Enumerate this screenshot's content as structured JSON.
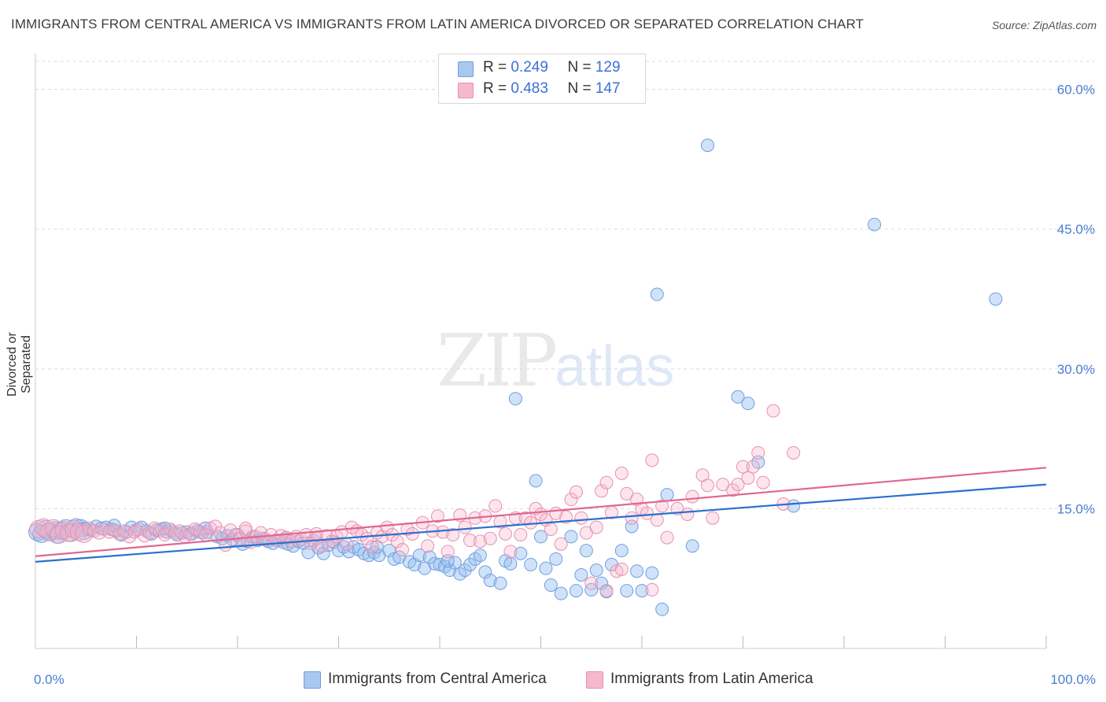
{
  "header": {
    "title": "IMMIGRANTS FROM CENTRAL AMERICA VS IMMIGRANTS FROM LATIN AMERICA DIVORCED OR SEPARATED CORRELATION CHART",
    "source": "Source: ZipAtlas.com"
  },
  "watermark": {
    "zip": "ZIP",
    "atlas": "atlas"
  },
  "legend": {
    "rows": [
      {
        "r_label": "R = ",
        "r_value": "0.249",
        "n_label": "N = ",
        "n_value": "129"
      },
      {
        "r_label": "R = ",
        "r_value": "0.483",
        "n_label": "N = ",
        "n_value": "147"
      }
    ]
  },
  "colors": {
    "blue_fill": "#a8c8f0",
    "blue_stroke": "#6f9fe0",
    "blue_line": "#2d6fd0",
    "pink_fill": "#f6b8cc",
    "pink_stroke": "#e890b0",
    "pink_line": "#e06890",
    "grid": "#dddddd",
    "tick_text": "#4a7fd0"
  },
  "chart_data": {
    "type": "scatter",
    "title": "IMMIGRANTS FROM CENTRAL AMERICA VS IMMIGRANTS FROM LATIN AMERICA DIVORCED OR SEPARATED CORRELATION CHART",
    "xlabel": "",
    "ylabel": "Divorced or Separated",
    "xlim": [
      0,
      100
    ],
    "ylim": [
      0,
      63
    ],
    "x_tick_labels": [
      "0.0%",
      "100.0%"
    ],
    "y_ticks": [
      15,
      30,
      45,
      60
    ],
    "y_tick_labels": [
      "15.0%",
      "30.0%",
      "45.0%",
      "60.0%"
    ],
    "grid": true,
    "legend_position": "top-center",
    "series": [
      {
        "name": "Immigrants from Central America",
        "color": "#a8c8f0",
        "trend": {
          "x": [
            0,
            100
          ],
          "y": [
            9.3,
            17.6
          ]
        },
        "points": [
          [
            0.2,
            12.5
          ],
          [
            0.6,
            12.3
          ],
          [
            1.0,
            12.8
          ],
          [
            1.5,
            12.5
          ],
          [
            2.0,
            12.7
          ],
          [
            2.5,
            12.6
          ],
          [
            3.0,
            12.9
          ],
          [
            3.5,
            12.4
          ],
          [
            4.0,
            13.0
          ],
          [
            4.5,
            12.9
          ],
          [
            5.0,
            12.8
          ],
          [
            5.5,
            12.7
          ],
          [
            6.0,
            13.1
          ],
          [
            6.5,
            12.9
          ],
          [
            7.0,
            13.0
          ],
          [
            7.5,
            12.8
          ],
          [
            8.0,
            12.6
          ],
          [
            8.5,
            12.2
          ],
          [
            9.0,
            12.5
          ],
          [
            9.5,
            13.0
          ],
          [
            10.0,
            12.7
          ],
          [
            10.5,
            13.0
          ],
          [
            11.0,
            12.6
          ],
          [
            11.5,
            12.3
          ],
          [
            12.0,
            12.7
          ],
          [
            12.5,
            12.8
          ],
          [
            13.0,
            12.5
          ],
          [
            13.5,
            12.6
          ],
          [
            14.0,
            12.2
          ],
          [
            14.5,
            12.4
          ],
          [
            15.0,
            12.5
          ],
          [
            15.5,
            12.3
          ],
          [
            16.0,
            12.6
          ],
          [
            16.5,
            12.4
          ],
          [
            17.0,
            12.5
          ],
          [
            18.0,
            12.0
          ],
          [
            18.5,
            11.8
          ],
          [
            19.0,
            12.1
          ],
          [
            19.5,
            11.7
          ],
          [
            20.0,
            12.2
          ],
          [
            20.5,
            11.2
          ],
          [
            21.0,
            11.5
          ],
          [
            21.5,
            12.0
          ],
          [
            22.0,
            11.6
          ],
          [
            22.5,
            11.8
          ],
          [
            23.0,
            11.5
          ],
          [
            23.5,
            11.3
          ],
          [
            24.0,
            11.6
          ],
          [
            24.5,
            11.4
          ],
          [
            25.0,
            11.2
          ],
          [
            25.5,
            11.0
          ],
          [
            26.0,
            11.5
          ],
          [
            26.5,
            11.3
          ],
          [
            27.0,
            10.3
          ],
          [
            27.5,
            11.6
          ],
          [
            28.0,
            10.8
          ],
          [
            28.5,
            10.2
          ],
          [
            29.0,
            11.1
          ],
          [
            29.5,
            11.4
          ],
          [
            30.0,
            10.5
          ],
          [
            30.5,
            10.9
          ],
          [
            31.0,
            10.4
          ],
          [
            31.5,
            10.9
          ],
          [
            32.0,
            10.6
          ],
          [
            32.5,
            10.2
          ],
          [
            33.0,
            10.0
          ],
          [
            33.5,
            10.3
          ],
          [
            34.0,
            10.0
          ],
          [
            35.0,
            10.5
          ],
          [
            35.5,
            9.6
          ],
          [
            36.0,
            9.8
          ],
          [
            37.0,
            9.3
          ],
          [
            37.5,
            9.0
          ],
          [
            38.0,
            10.0
          ],
          [
            38.5,
            8.6
          ],
          [
            39.0,
            9.8
          ],
          [
            39.5,
            9.1
          ],
          [
            40.0,
            9.0
          ],
          [
            40.5,
            8.8
          ],
          [
            41.0,
            8.4
          ],
          [
            41.5,
            9.2
          ],
          [
            42.0,
            8.0
          ],
          [
            42.5,
            8.4
          ],
          [
            43.0,
            9.0
          ],
          [
            43.5,
            9.6
          ],
          [
            44.0,
            10.0
          ],
          [
            44.5,
            8.2
          ],
          [
            45.0,
            7.3
          ],
          [
            46.0,
            7.0
          ],
          [
            46.5,
            9.4
          ],
          [
            47.0,
            9.1
          ],
          [
            47.5,
            26.8
          ],
          [
            48.0,
            10.2
          ],
          [
            49.0,
            9.0
          ],
          [
            49.5,
            18.0
          ],
          [
            50.0,
            12.0
          ],
          [
            50.5,
            8.6
          ],
          [
            51.0,
            6.8
          ],
          [
            51.5,
            9.6
          ],
          [
            52.0,
            5.9
          ],
          [
            53.0,
            12.0
          ],
          [
            53.5,
            6.2
          ],
          [
            54.0,
            7.9
          ],
          [
            54.5,
            10.5
          ],
          [
            55.0,
            6.3
          ],
          [
            55.5,
            8.4
          ],
          [
            56.0,
            7.0
          ],
          [
            56.5,
            6.1
          ],
          [
            57.0,
            9.0
          ],
          [
            58.0,
            10.5
          ],
          [
            58.5,
            6.2
          ],
          [
            59.0,
            13.1
          ],
          [
            59.5,
            8.3
          ],
          [
            60.0,
            6.2
          ],
          [
            61.0,
            8.1
          ],
          [
            61.5,
            38.0
          ],
          [
            62.0,
            4.2
          ],
          [
            62.5,
            16.5
          ],
          [
            65.0,
            11.0
          ],
          [
            66.5,
            54.0
          ],
          [
            69.5,
            27.0
          ],
          [
            70.5,
            26.3
          ],
          [
            71.5,
            20.0
          ],
          [
            75.0,
            15.3
          ],
          [
            83.0,
            45.5
          ],
          [
            95.0,
            37.5
          ],
          [
            2.2,
            12.2
          ],
          [
            4.8,
            12.6
          ],
          [
            7.8,
            13.2
          ],
          [
            12.8,
            12.9
          ],
          [
            16.8,
            12.9
          ],
          [
            24.8,
            11.9
          ],
          [
            33.8,
            10.9
          ],
          [
            40.8,
            9.4
          ]
        ]
      },
      {
        "name": "Immigrants from Latin America",
        "color": "#f6b8cc",
        "trend": {
          "x": [
            0,
            100
          ],
          "y": [
            9.9,
            19.4
          ]
        },
        "points": [
          [
            0.3,
            12.8
          ],
          [
            0.8,
            13.0
          ],
          [
            1.3,
            12.5
          ],
          [
            1.8,
            12.9
          ],
          [
            2.3,
            12.2
          ],
          [
            2.8,
            12.7
          ],
          [
            3.3,
            12.4
          ],
          [
            3.8,
            12.8
          ],
          [
            4.3,
            12.5
          ],
          [
            4.8,
            12.3
          ],
          [
            5.3,
            12.9
          ],
          [
            5.8,
            12.6
          ],
          [
            6.3,
            12.4
          ],
          [
            6.8,
            12.8
          ],
          [
            7.3,
            12.5
          ],
          [
            7.8,
            12.7
          ],
          [
            8.3,
            12.3
          ],
          [
            8.8,
            12.6
          ],
          [
            9.3,
            12.0
          ],
          [
            9.8,
            12.5
          ],
          [
            10.3,
            12.8
          ],
          [
            10.8,
            12.1
          ],
          [
            11.3,
            12.4
          ],
          [
            11.8,
            12.9
          ],
          [
            12.3,
            12.6
          ],
          [
            12.8,
            12.2
          ],
          [
            13.3,
            12.8
          ],
          [
            13.8,
            12.4
          ],
          [
            14.3,
            12.6
          ],
          [
            14.8,
            12.0
          ],
          [
            15.3,
            12.3
          ],
          [
            15.8,
            12.8
          ],
          [
            16.3,
            12.5
          ],
          [
            16.8,
            12.2
          ],
          [
            17.3,
            12.9
          ],
          [
            17.8,
            13.1
          ],
          [
            18.3,
            12.4
          ],
          [
            18.8,
            11.1
          ],
          [
            19.3,
            12.7
          ],
          [
            19.8,
            12.2
          ],
          [
            20.3,
            11.8
          ],
          [
            20.8,
            12.6
          ],
          [
            21.3,
            11.4
          ],
          [
            21.8,
            12.0
          ],
          [
            22.3,
            12.4
          ],
          [
            22.8,
            11.7
          ],
          [
            23.3,
            12.2
          ],
          [
            23.8,
            11.6
          ],
          [
            24.3,
            12.1
          ],
          [
            24.8,
            11.9
          ],
          [
            25.3,
            11.5
          ],
          [
            25.8,
            12.0
          ],
          [
            26.3,
            11.7
          ],
          [
            26.8,
            12.2
          ],
          [
            27.3,
            11.3
          ],
          [
            27.8,
            11.8
          ],
          [
            28.3,
            11.0
          ],
          [
            28.8,
            12.1
          ],
          [
            29.3,
            11.5
          ],
          [
            29.8,
            12.0
          ],
          [
            30.3,
            12.5
          ],
          [
            30.8,
            11.2
          ],
          [
            31.3,
            13.0
          ],
          [
            31.8,
            12.6
          ],
          [
            32.3,
            12.2
          ],
          [
            32.8,
            11.8
          ],
          [
            33.3,
            10.9
          ],
          [
            33.8,
            12.4
          ],
          [
            34.3,
            12.0
          ],
          [
            34.8,
            13.0
          ],
          [
            35.3,
            12.2
          ],
          [
            35.8,
            11.5
          ],
          [
            36.3,
            10.6
          ],
          [
            36.8,
            12.8
          ],
          [
            37.3,
            12.3
          ],
          [
            38.3,
            13.5
          ],
          [
            38.8,
            11.0
          ],
          [
            39.3,
            12.6
          ],
          [
            39.8,
            14.2
          ],
          [
            40.3,
            12.5
          ],
          [
            40.8,
            10.4
          ],
          [
            41.3,
            12.2
          ],
          [
            42.0,
            14.3
          ],
          [
            42.5,
            13.0
          ],
          [
            43.0,
            11.6
          ],
          [
            43.5,
            14.0
          ],
          [
            44.0,
            11.5
          ],
          [
            44.5,
            14.2
          ],
          [
            45.0,
            11.8
          ],
          [
            45.5,
            15.3
          ],
          [
            46.0,
            13.6
          ],
          [
            46.5,
            12.3
          ],
          [
            47.0,
            10.4
          ],
          [
            47.5,
            14.0
          ],
          [
            48.0,
            12.2
          ],
          [
            48.5,
            14.0
          ],
          [
            49.0,
            13.5
          ],
          [
            49.5,
            15.0
          ],
          [
            50.0,
            14.4
          ],
          [
            50.5,
            13.8
          ],
          [
            51.0,
            12.8
          ],
          [
            51.5,
            14.5
          ],
          [
            52.0,
            11.2
          ],
          [
            52.5,
            14.1
          ],
          [
            53.0,
            16.0
          ],
          [
            53.5,
            16.8
          ],
          [
            54.0,
            14.0
          ],
          [
            54.5,
            12.4
          ],
          [
            55.0,
            7.0
          ],
          [
            55.5,
            13.0
          ],
          [
            56.0,
            16.9
          ],
          [
            56.5,
            17.8
          ],
          [
            57.0,
            14.6
          ],
          [
            57.5,
            8.3
          ],
          [
            58.0,
            18.8
          ],
          [
            58.5,
            16.6
          ],
          [
            59.0,
            14.0
          ],
          [
            59.5,
            16.0
          ],
          [
            60.0,
            15.0
          ],
          [
            60.5,
            14.5
          ],
          [
            61.0,
            20.2
          ],
          [
            61.5,
            13.8
          ],
          [
            62.0,
            15.3
          ],
          [
            62.5,
            11.9
          ],
          [
            63.5,
            15.0
          ],
          [
            64.5,
            14.4
          ],
          [
            65.0,
            16.3
          ],
          [
            66.0,
            18.6
          ],
          [
            66.5,
            17.5
          ],
          [
            67.0,
            14.0
          ],
          [
            68.0,
            17.6
          ],
          [
            69.0,
            17.0
          ],
          [
            69.5,
            17.6
          ],
          [
            70.0,
            19.5
          ],
          [
            70.5,
            18.3
          ],
          [
            71.0,
            19.5
          ],
          [
            71.5,
            21.0
          ],
          [
            72.0,
            17.8
          ],
          [
            73.0,
            25.5
          ],
          [
            74.0,
            15.5
          ],
          [
            75.0,
            21.0
          ],
          [
            56.5,
            6.2
          ],
          [
            58.0,
            8.5
          ],
          [
            61.0,
            6.3
          ],
          [
            20.8,
            12.9
          ],
          [
            27.8,
            12.3
          ]
        ]
      }
    ]
  },
  "axes": {
    "x_left": "0.0%",
    "x_right": "100.0%",
    "ylabel": "Divorced or Separated",
    "y_ticks": [
      "15.0%",
      "30.0%",
      "45.0%",
      "60.0%"
    ]
  },
  "bottom_legend": {
    "blue": "Immigrants from Central America",
    "pink": "Immigrants from Latin America"
  }
}
